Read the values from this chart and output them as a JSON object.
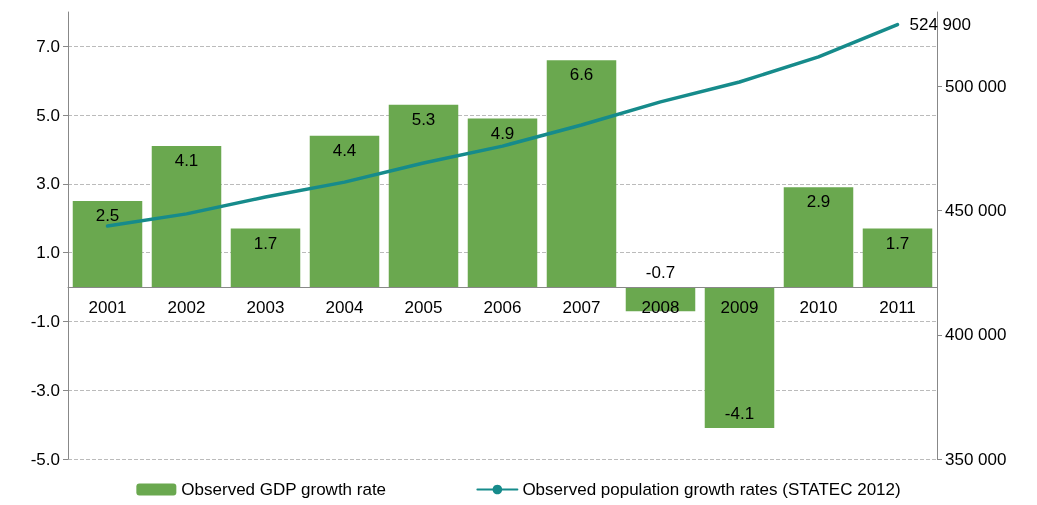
{
  "chart_data": {
    "type": "bar",
    "categories": [
      "2001",
      "2002",
      "2003",
      "2004",
      "2005",
      "2006",
      "2007",
      "2008",
      "2009",
      "2010",
      "2011"
    ],
    "series": [
      {
        "name": "Observed GDP growth rate",
        "color": "#6aa84f",
        "values": [
          2.5,
          4.1,
          1.7,
          4.4,
          5.3,
          4.9,
          6.6,
          -0.7,
          -4.1,
          2.9,
          1.7
        ]
      },
      {
        "name": "Observed population growth rates (STATEC 2012)",
        "type": "line",
        "axis": "y2",
        "color": "#168b8b",
        "marker": "none",
        "values": [
          443800,
          448700,
          455500,
          461500,
          469200,
          476000,
          484500,
          493800,
          501800,
          511900,
          524900
        ],
        "value_labels": [
          null,
          null,
          null,
          null,
          null,
          null,
          null,
          null,
          null,
          null,
          "524 900"
        ]
      }
    ],
    "data_labels": true,
    "ylim": [
      -5,
      8
    ],
    "yticks": [
      {
        "value": -5,
        "label": "-5.0"
      },
      {
        "value": -3,
        "label": "-3.0"
      },
      {
        "value": -1,
        "label": "-1.0"
      },
      {
        "value": 1,
        "label": "1.0"
      },
      {
        "value": 3,
        "label": "3.0"
      },
      {
        "value": 5,
        "label": "5.0"
      },
      {
        "value": 7,
        "label": "7.0"
      }
    ],
    "y2lim": [
      350000,
      530000
    ],
    "y2ticks": [
      {
        "value": 350000,
        "label": "350 000"
      },
      {
        "value": 400000,
        "label": "400 000"
      },
      {
        "value": 450000,
        "label": "450 000"
      },
      {
        "value": 500000,
        "label": "500 000"
      }
    ],
    "grid": "y",
    "legend": "bottom"
  }
}
